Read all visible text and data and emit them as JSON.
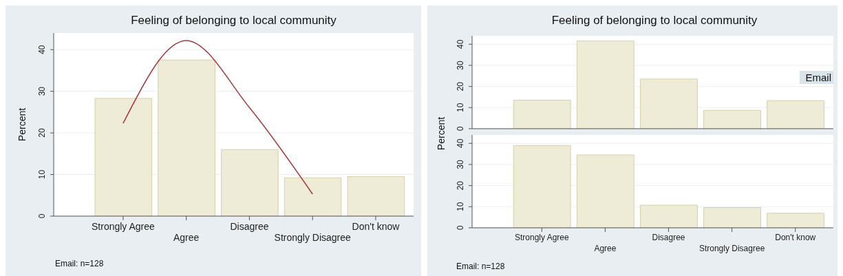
{
  "chart_data": [
    {
      "type": "bar",
      "title": "Feeling of belonging to local community",
      "ylabel": "Percent",
      "categories": [
        "Strongly Agree",
        "Agree",
        "Disagree",
        "Strongly Disagree",
        "Don't know"
      ],
      "ylim": [
        0,
        44
      ],
      "yticks": [
        0,
        10,
        20,
        30,
        40
      ],
      "grid": "y",
      "annotations": [
        "Email: n=128"
      ],
      "series": [
        {
          "color": "#eeebd7",
          "values": [
            28.3,
            37.5,
            16.0,
            9.2,
            9.5
          ]
        },
        {
          "type": "line",
          "color": "#a5383a",
          "values": [
            22.3,
            42.2,
            26.1,
            5.3,
            null
          ]
        }
      ]
    },
    {
      "type": "bar",
      "title": "Feeling of belonging to local community",
      "ylabel": "Percent",
      "categories": [
        null,
        null,
        null,
        null,
        null
      ],
      "ylim": [
        0,
        44
      ],
      "yticks": [
        0,
        10,
        20,
        30,
        40
      ],
      "grid": "y",
      "tick_labels": "y",
      "series": [
        {
          "name": "Email",
          "color": "#eeebd7",
          "values": [
            13.5,
            41.6,
            23.5,
            8.7,
            13.3
          ]
        }
      ]
    },
    {
      "type": "bar",
      "categories": [
        "Strongly Agree",
        "Agree",
        "Disagree",
        "Strongly Disagree",
        "Don't know"
      ],
      "ylim": [
        0,
        44
      ],
      "yticks": [
        0,
        10,
        20,
        30,
        40
      ],
      "grid": "y",
      "annotations": [
        "Email: n=128"
      ],
      "series": [
        {
          "color": "#eeebd7",
          "values": [
            39.0,
            34.5,
            10.7,
            9.6,
            6.9
          ]
        }
      ]
    }
  ]
}
